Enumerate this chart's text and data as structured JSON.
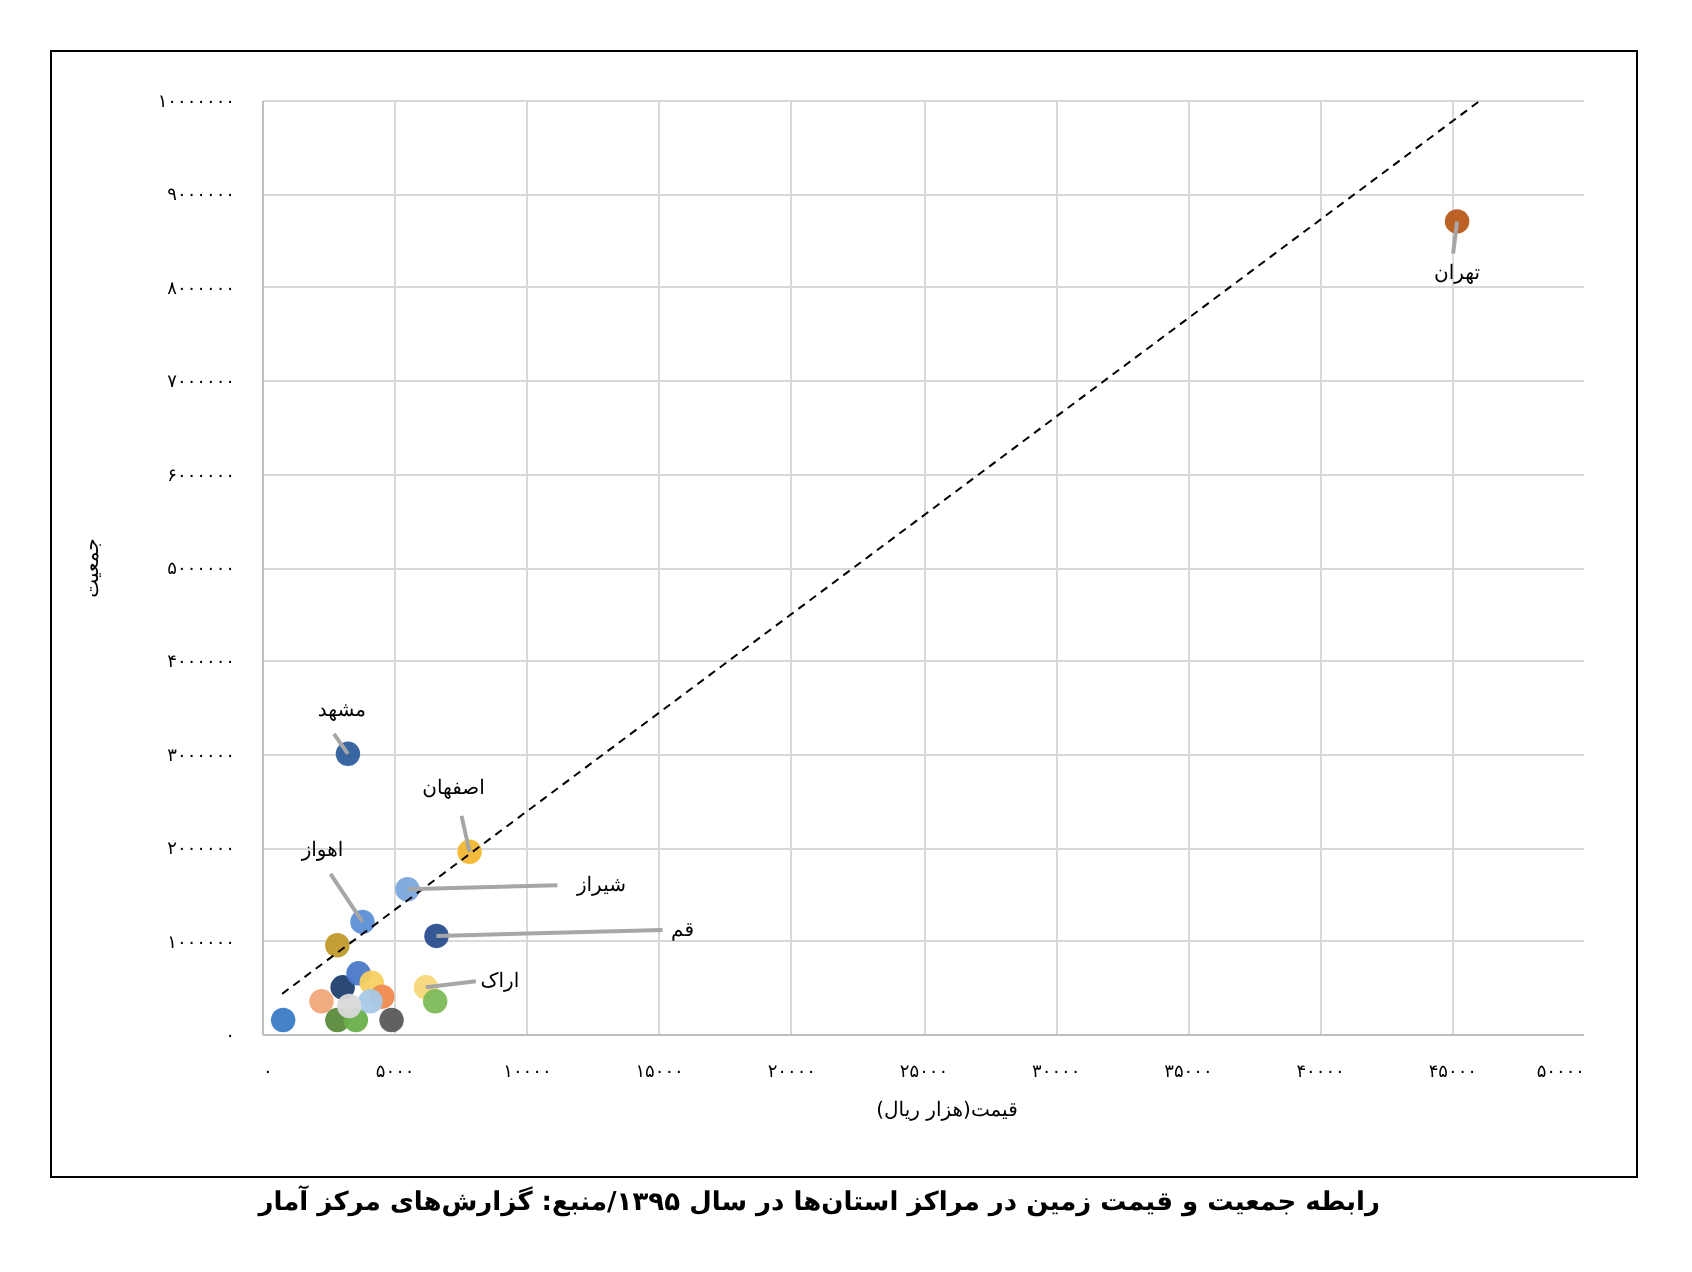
{
  "chart_data": {
    "type": "scatter",
    "title": "رابطه جمعیت و قیمت زمین در مراکز استان‌ها در سال ۱۳۹۵/منبع: گزارش‌های مرکز آمار",
    "xlabel": "قیمت(هزار ریال)",
    "ylabel": "جمعیت",
    "xlim": [
      0,
      50000
    ],
    "ylim": [
      0,
      10000000
    ],
    "xticks": [
      {
        "value": 0,
        "label": "۰"
      },
      {
        "value": 5000,
        "label": "۵۰۰۰"
      },
      {
        "value": 10000,
        "label": "۱۰۰۰۰"
      },
      {
        "value": 15000,
        "label": "۱۵۰۰۰"
      },
      {
        "value": 20000,
        "label": "۲۰۰۰۰"
      },
      {
        "value": 25000,
        "label": "۲۵۰۰۰"
      },
      {
        "value": 30000,
        "label": "۳۰۰۰۰"
      },
      {
        "value": 35000,
        "label": "۳۵۰۰۰"
      },
      {
        "value": 40000,
        "label": "۴۰۰۰۰"
      },
      {
        "value": 45000,
        "label": "۴۵۰۰۰"
      },
      {
        "value": 50000,
        "label": "۵۰۰۰۰"
      }
    ],
    "yticks": [
      {
        "value": 0,
        "label": "۰"
      },
      {
        "value": 1000000,
        "label": "۱۰۰۰۰۰۰"
      },
      {
        "value": 2000000,
        "label": "۲۰۰۰۰۰۰"
      },
      {
        "value": 3000000,
        "label": "۳۰۰۰۰۰۰"
      },
      {
        "value": 4000000,
        "label": "۴۰۰۰۰۰۰"
      },
      {
        "value": 5000000,
        "label": "۵۰۰۰۰۰۰"
      },
      {
        "value": 6000000,
        "label": "۶۰۰۰۰۰۰"
      },
      {
        "value": 7000000,
        "label": "۷۰۰۰۰۰۰"
      },
      {
        "value": 8000000,
        "label": "۸۰۰۰۰۰۰"
      },
      {
        "value": 9000000,
        "label": "۹۰۰۰۰۰۰"
      },
      {
        "value": 10000000,
        "label": "۱۰۰۰۰۰۰۰"
      }
    ],
    "grid": true,
    "series": [
      {
        "marker": "circle",
        "x": [
          45200,
          3250,
          7850,
          5500,
          3800,
          6600,
          6200,
          2850,
          800,
          2250,
          3050,
          3650,
          4150,
          4550,
          6550,
          4900,
          2850,
          3550,
          4100,
          3300
        ],
        "values": [
          8700000,
          3000000,
          1950000,
          1550000,
          1200000,
          1050000,
          500000,
          950000,
          150000,
          350000,
          500000,
          650000,
          550000,
          400000,
          350000,
          150000,
          150000,
          150000,
          350000,
          300000
        ],
        "colors": [
          "#b85a1a",
          "#2e5e9c",
          "#f2b630",
          "#7ba7dc",
          "#5c8fd6",
          "#2a4f8f",
          "#f6d77a",
          "#c09a2a",
          "#3a7cc4",
          "#f2a77a",
          "#1f3f6e",
          "#4a78c8",
          "#f5d060",
          "#f08a50",
          "#7dbb5a",
          "#595959",
          "#5a8a3a",
          "#6ab04a",
          "#a7c9e8",
          "#d9d9d9"
        ]
      },
      {
        "type": "line",
        "x": [
          760,
          46100
        ],
        "values": [
          430000,
          10000000
        ],
        "color": "#000000",
        "line_style": "dashed"
      }
    ],
    "annotations": [
      {
        "text": "تهران",
        "x": 45200,
        "y": 8700000
      },
      {
        "text": "مشهد",
        "x": 3250,
        "y": 3000000
      },
      {
        "text": "اصفهان",
        "x": 7850,
        "y": 1950000
      },
      {
        "text": "شیراز",
        "x": 5500,
        "y": 1550000
      },
      {
        "text": "اهواز",
        "x": 3800,
        "y": 1200000
      },
      {
        "text": "قم",
        "x": 6600,
        "y": 1050000
      },
      {
        "text": "اراک",
        "x": 6200,
        "y": 500000
      }
    ]
  }
}
